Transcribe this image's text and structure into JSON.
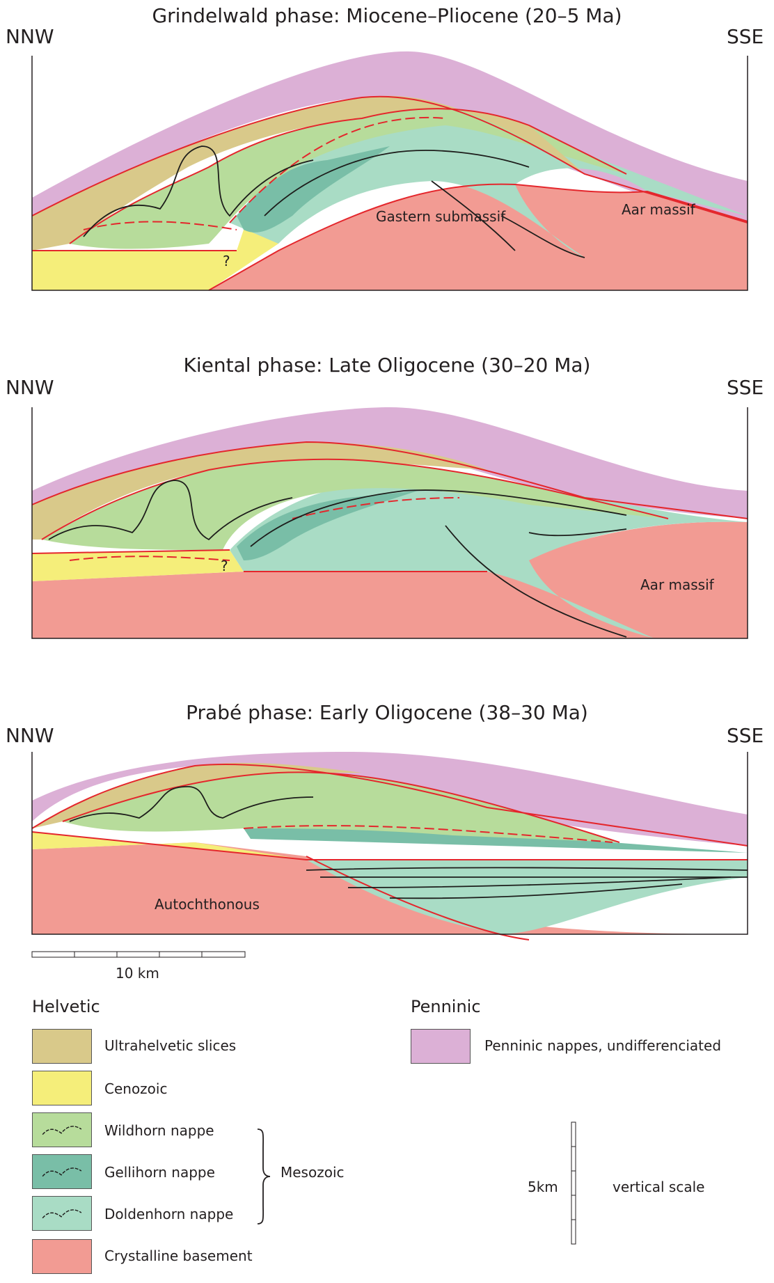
{
  "panels": [
    {
      "title": "Grindelwald phase:  Miocene–Pliocene (20–5 Ma)",
      "left_dir": "NNW",
      "right_dir": "SSE",
      "labels": [
        "Gastern submassif",
        "Aar massif"
      ],
      "query_mark": "?"
    },
    {
      "title": "Kiental phase: Late Oligocene (30–20 Ma)",
      "left_dir": "NNW",
      "right_dir": "SSE",
      "labels": [
        "Aar massif"
      ],
      "query_mark": "?"
    },
    {
      "title": "Prabé phase: Early Oligocene (38–30 Ma)",
      "left_dir": "NNW",
      "right_dir": "SSE",
      "labels": [
        "Autochthonous"
      ]
    }
  ],
  "horizontal_scale": {
    "label": "10 km"
  },
  "vertical_scale": {
    "value_label": "5km",
    "caption": "vertical scale"
  },
  "legend": {
    "helvetic_heading": "Helvetic",
    "penninic_heading": "Penninic",
    "mesozoic_label": "Mesozoic",
    "items": [
      {
        "label": "Ultrahelvetic slices",
        "color": "#d9c98a"
      },
      {
        "label": "Cenozoic",
        "color": "#f5ee7a"
      },
      {
        "label": "Wildhorn nappe",
        "color": "#b7dc9b"
      },
      {
        "label": "Gellihorn nappe",
        "color": "#79bea7"
      },
      {
        "label": "Doldenhorn nappe",
        "color": "#a9dcc5"
      },
      {
        "label": "Crystalline basement",
        "color": "#f29b93"
      }
    ],
    "penninic_item": {
      "label": "Penninic nappes, undifferenciated",
      "color": "#dcb0d6"
    }
  },
  "colors": {
    "thrust": "#e4262c",
    "fold_line": "#1d1d1b",
    "frame": "#231f20"
  }
}
